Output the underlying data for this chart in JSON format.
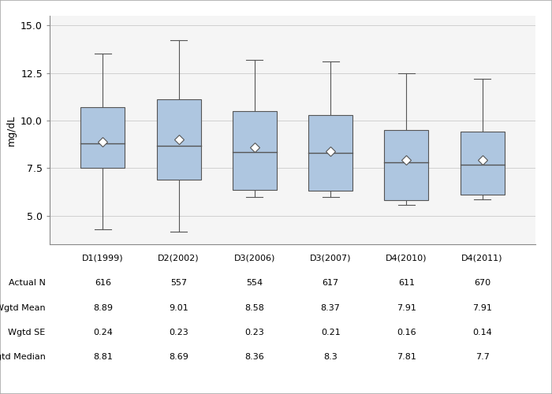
{
  "ylabel": "mg/dL",
  "ylim": [
    3.5,
    15.5
  ],
  "yticks": [
    5.0,
    7.5,
    10.0,
    12.5,
    15.0
  ],
  "categories": [
    "D1(1999)",
    "D2(2002)",
    "D3(2006)",
    "D3(2007)",
    "D4(2010)",
    "D4(2011)"
  ],
  "box_data": [
    {
      "q1": 7.5,
      "median": 8.81,
      "q3": 10.7,
      "whisker_low": 4.3,
      "whisker_high": 13.5,
      "mean": 8.89
    },
    {
      "q1": 6.9,
      "median": 8.69,
      "q3": 11.1,
      "whisker_low": 4.15,
      "whisker_high": 14.2,
      "mean": 9.01
    },
    {
      "q1": 6.35,
      "median": 8.36,
      "q3": 10.5,
      "whisker_low": 6.0,
      "whisker_high": 13.2,
      "mean": 8.58
    },
    {
      "q1": 6.3,
      "median": 8.3,
      "q3": 10.3,
      "whisker_low": 6.0,
      "whisker_high": 13.1,
      "mean": 8.37
    },
    {
      "q1": 5.8,
      "median": 7.81,
      "q3": 9.5,
      "whisker_low": 5.55,
      "whisker_high": 12.5,
      "mean": 7.91
    },
    {
      "q1": 6.1,
      "median": 7.7,
      "q3": 9.4,
      "whisker_low": 5.85,
      "whisker_high": 12.2,
      "mean": 7.91
    }
  ],
  "table_rows": [
    {
      "label": "Actual N",
      "values": [
        "616",
        "557",
        "554",
        "617",
        "611",
        "670"
      ]
    },
    {
      "label": "Wgtd Mean",
      "values": [
        "8.89",
        "9.01",
        "8.58",
        "8.37",
        "7.91",
        "7.91"
      ]
    },
    {
      "label": "Wgtd SE",
      "values": [
        "0.24",
        "0.23",
        "0.23",
        "0.21",
        "0.16",
        "0.14"
      ]
    },
    {
      "label": "Wgtd Median",
      "values": [
        "8.81",
        "8.69",
        "8.36",
        "8.3",
        "7.81",
        "7.7"
      ]
    }
  ],
  "box_color": "#aec6e0",
  "box_edge_color": "#555555",
  "whisker_color": "#555555",
  "median_color": "#555555",
  "mean_marker_color": "white",
  "mean_marker_edge_color": "#555555",
  "grid_color": "#d0d0d0",
  "plot_bg_color": "#f5f5f5",
  "outer_bg_color": "#ffffff",
  "table_font_size": 8.0,
  "axis_font_size": 9,
  "ylabel_font_size": 9
}
